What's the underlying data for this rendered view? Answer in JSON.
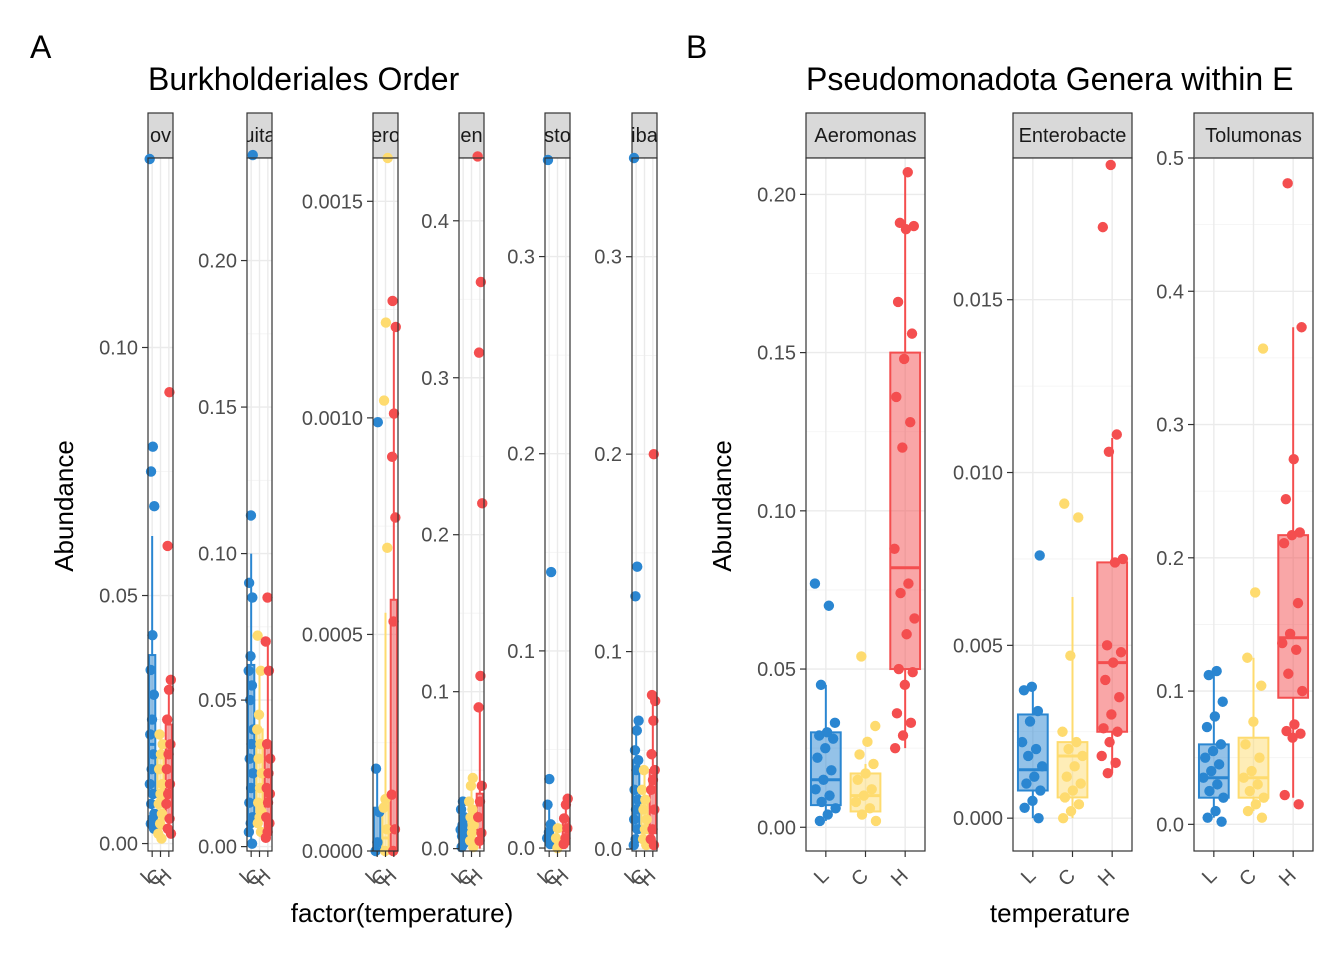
{
  "colors": {
    "L": "#2a86d1",
    "C": "#fedb6f",
    "H": "#f44e4f",
    "grid": "#ebebeb",
    "strip_fill": "#d9d9d9",
    "panel_border": "#333333"
  },
  "chart_data": [
    {
      "letter": "A",
      "title": "Burkholderiales Order",
      "type": "box+jitter",
      "xlabel": "factor(temperature)",
      "ylabel": "Abundance",
      "categories": [
        "L",
        "C",
        "H"
      ],
      "tick_text": "LCH",
      "facets": [
        {
          "strip": "ov",
          "ylim": [
            -0.0015,
            0.1382
          ],
          "yticks": [
            0.0,
            0.05,
            0.1
          ],
          "tick_labels": [
            "0.00",
            "0.05",
            "0.10"
          ],
          "boxes": {
            "L": [
              0.003,
              0.01,
              0.02,
              0.038,
              0.062
            ],
            "C": [
              0.001,
              0.003,
              0.009,
              0.018,
              0.022
            ],
            "H": [
              0.002,
              0.005,
              0.015,
              0.024,
              0.032
            ]
          },
          "points": {
            "L": [
              0.138,
              0.08,
              0.075,
              0.068,
              0.042,
              0.035,
              0.03,
              0.025,
              0.022,
              0.018,
              0.015,
              0.012,
              0.01,
              0.008,
              0.006,
              0.005,
              0.004,
              0.003
            ],
            "C": [
              0.022,
              0.02,
              0.018,
              0.015,
              0.012,
              0.01,
              0.008,
              0.006,
              0.004,
              0.002,
              0.001
            ],
            "H": [
              0.091,
              0.06,
              0.033,
              0.031,
              0.025,
              0.02,
              0.018,
              0.015,
              0.012,
              0.01,
              0.008,
              0.005,
              0.003,
              0.002
            ]
          }
        },
        {
          "strip": "uita",
          "ylim": [
            -0.0015,
            0.235
          ],
          "yticks": [
            0.0,
            0.05,
            0.1,
            0.15,
            0.2
          ],
          "tick_labels": [
            "0.00",
            "0.05",
            "0.10",
            "0.15",
            "0.20"
          ],
          "boxes": {
            "L": [
              0.001,
              0.01,
              0.03,
              0.062,
              0.1
            ],
            "C": [
              0.004,
              0.01,
              0.02,
              0.04,
              0.06
            ],
            "H": [
              0.002,
              0.006,
              0.018,
              0.035,
              0.07
            ]
          },
          "points": {
            "L": [
              0.236,
              0.113,
              0.09,
              0.085,
              0.065,
              0.06,
              0.055,
              0.05,
              0.04,
              0.035,
              0.03,
              0.025,
              0.02,
              0.015,
              0.01,
              0.008,
              0.005,
              0.001
            ],
            "C": [
              0.072,
              0.06,
              0.045,
              0.04,
              0.035,
              0.03,
              0.025,
              0.02,
              0.015,
              0.012,
              0.01,
              0.008,
              0.005
            ],
            "H": [
              0.085,
              0.07,
              0.06,
              0.035,
              0.03,
              0.025,
              0.02,
              0.018,
              0.015,
              0.01,
              0.008,
              0.005,
              0.003
            ]
          }
        },
        {
          "strip": "ero",
          "ylim": [
            0.0,
            0.0016
          ],
          "yticks": [
            0.0,
            0.0005,
            0.001,
            0.0015
          ],
          "tick_labels": [
            "0.0000",
            "0.0005",
            "0.0010",
            "0.0015"
          ],
          "boxes": {
            "L": [
              0.0,
              0.0,
              0.0,
              0.0001,
              0.0002
            ],
            "C": [
              0.0,
              0.0,
              3e-05,
              0.00012,
              0.00055
            ],
            "H": [
              0.0,
              0.0,
              5e-05,
              0.00058,
              0.0012
            ]
          },
          "points": {
            "L": [
              0.00099,
              0.00019,
              9e-05,
              2e-05,
              0.0
            ],
            "C": [
              0.0016,
              0.00122,
              0.00104,
              0.0007,
              0.00012,
              0.0001,
              5e-05,
              0.0
            ],
            "H": [
              0.00127,
              0.00121,
              0.00101,
              0.00091,
              0.00077,
              0.00053,
              0.00013,
              5e-05,
              0.0
            ]
          }
        },
        {
          "strip": "en",
          "ylim": [
            -0.0015,
            0.44
          ],
          "yticks": [
            0.0,
            0.1,
            0.2,
            0.3,
            0.4
          ],
          "tick_labels": [
            "0.0",
            "0.1",
            "0.2",
            "0.3",
            "0.4"
          ],
          "boxes": {
            "L": [
              0.0,
              0.005,
              0.01,
              0.02,
              0.03
            ],
            "C": [
              0.0,
              0.005,
              0.01,
              0.02,
              0.045
            ],
            "H": [
              0.0,
              0.01,
              0.02,
              0.035,
              0.09
            ]
          },
          "points": {
            "L": [
              0.03,
              0.025,
              0.02,
              0.015,
              0.012,
              0.01,
              0.008,
              0.005,
              0.003,
              0.001
            ],
            "C": [
              0.045,
              0.04,
              0.03,
              0.025,
              0.02,
              0.015,
              0.01,
              0.005,
              0.001
            ],
            "H": [
              0.441,
              0.361,
              0.316,
              0.22,
              0.11,
              0.09,
              0.04,
              0.03,
              0.02,
              0.01,
              0.005
            ]
          }
        },
        {
          "strip": "sto",
          "ylim": [
            -0.0015,
            0.35
          ],
          "yticks": [
            0.0,
            0.1,
            0.2,
            0.3
          ],
          "tick_labels": [
            "0.0",
            "0.1",
            "0.2",
            "0.3"
          ],
          "boxes": {
            "L": [
              0.0,
              0.002,
              0.005,
              0.01,
              0.02
            ],
            "C": [
              0.0,
              0.0,
              0.002,
              0.005,
              0.01
            ],
            "H": [
              0.0,
              0.002,
              0.005,
              0.015,
              0.025
            ]
          },
          "points": {
            "L": [
              0.349,
              0.14,
              0.035,
              0.022,
              0.012,
              0.008,
              0.005,
              0.002
            ],
            "C": [
              0.01,
              0.005,
              0.002,
              0.0
            ],
            "H": [
              0.025,
              0.022,
              0.015,
              0.01,
              0.005,
              0.002
            ]
          }
        },
        {
          "strip": "iba",
          "ylim": [
            -0.001,
            0.35
          ],
          "yticks": [
            0.0,
            0.1,
            0.2,
            0.3
          ],
          "tick_labels": [
            "0.0",
            "0.1",
            "0.2",
            "0.3"
          ],
          "boxes": {
            "L": [
              0.0,
              0.01,
              0.025,
              0.045,
              0.065
            ],
            "C": [
              0.002,
              0.008,
              0.015,
              0.025,
              0.04
            ],
            "H": [
              0.002,
              0.008,
              0.02,
              0.04,
              0.078
            ]
          },
          "points": {
            "L": [
              0.35,
              0.143,
              0.128,
              0.065,
              0.06,
              0.05,
              0.045,
              0.04,
              0.03,
              0.025,
              0.02,
              0.015,
              0.01,
              0.005,
              0.002
            ],
            "C": [
              0.04,
              0.03,
              0.025,
              0.02,
              0.015,
              0.01,
              0.005,
              0.002
            ],
            "H": [
              0.2,
              0.078,
              0.075,
              0.065,
              0.048,
              0.04,
              0.035,
              0.03,
              0.02,
              0.01,
              0.005,
              0.002
            ]
          }
        }
      ]
    },
    {
      "letter": "B",
      "title": "Pseudomonadota Genera within E",
      "type": "box+jitter",
      "xlabel": "temperature",
      "ylabel": "Abundance",
      "categories": [
        "L",
        "C",
        "H"
      ],
      "facets": [
        {
          "strip": "Aeromonas",
          "ylim": [
            -0.0075,
            0.2115
          ],
          "yticks": [
            0.0,
            0.05,
            0.1,
            0.15,
            0.2
          ],
          "tick_labels": [
            "0.00",
            "0.05",
            "0.10",
            "0.15",
            "0.20"
          ],
          "boxes": {
            "L": [
              0.002,
              0.007,
              0.015,
              0.03,
              0.045
            ],
            "C": [
              0.003,
              0.005,
              0.01,
              0.017,
              0.02
            ],
            "H": [
              0.025,
              0.05,
              0.082,
              0.15,
              0.207
            ]
          },
          "points": {
            "L": [
              0.077,
              0.07,
              0.045,
              0.033,
              0.03,
              0.029,
              0.028,
              0.025,
              0.022,
              0.018,
              0.015,
              0.012,
              0.01,
              0.008,
              0.006,
              0.004,
              0.002
            ],
            "C": [
              0.054,
              0.032,
              0.027,
              0.023,
              0.02,
              0.017,
              0.015,
              0.012,
              0.01,
              0.008,
              0.006,
              0.004,
              0.002
            ],
            "H": [
              0.207,
              0.191,
              0.19,
              0.189,
              0.166,
              0.156,
              0.148,
              0.136,
              0.128,
              0.12,
              0.088,
              0.077,
              0.074,
              0.066,
              0.061,
              0.05,
              0.049,
              0.045,
              0.036,
              0.033,
              0.029,
              0.025
            ]
          }
        },
        {
          "strip": "Enterobacte",
          "ylim": [
            -0.00095,
            0.0191
          ],
          "yticks": [
            0.0,
            0.005,
            0.01,
            0.015
          ],
          "tick_labels": [
            "0.000",
            "0.005",
            "0.010",
            "0.015"
          ],
          "boxes": {
            "L": [
              0.0,
              0.0008,
              0.0014,
              0.003,
              0.0037
            ],
            "C": [
              0.0,
              0.0006,
              0.0018,
              0.0022,
              0.0064
            ],
            "H": [
              0.0013,
              0.0025,
              0.0045,
              0.0074,
              0.011
            ]
          },
          "points": {
            "L": [
              0.0076,
              0.0038,
              0.0037,
              0.0031,
              0.0028,
              0.0022,
              0.002,
              0.0018,
              0.0015,
              0.0012,
              0.001,
              0.0008,
              0.0005,
              0.0003,
              0.0
            ],
            "C": [
              0.0091,
              0.0087,
              0.0047,
              0.0025,
              0.0022,
              0.002,
              0.0018,
              0.0015,
              0.0012,
              0.001,
              0.0008,
              0.0006,
              0.0004,
              0.0002,
              0.0
            ],
            "H": [
              0.0189,
              0.0171,
              0.0111,
              0.0106,
              0.0075,
              0.0074,
              0.005,
              0.0048,
              0.0045,
              0.004,
              0.0035,
              0.003,
              0.0026,
              0.0025,
              0.0022,
              0.0018,
              0.0016,
              0.0013
            ]
          }
        },
        {
          "strip": "Tolumonas",
          "ylim": [
            -0.02,
            0.5
          ],
          "yticks": [
            0.0,
            0.1,
            0.2,
            0.3,
            0.4,
            0.5
          ],
          "tick_labels": [
            "0.0",
            "0.1",
            "0.2",
            "0.3",
            "0.4",
            "0.5"
          ],
          "boxes": {
            "L": [
              0.005,
              0.02,
              0.035,
              0.06,
              0.115
            ],
            "C": [
              0.01,
              0.02,
              0.035,
              0.065,
              0.125
            ],
            "H": [
              0.02,
              0.095,
              0.14,
              0.217,
              0.373
            ]
          },
          "points": {
            "L": [
              0.115,
              0.112,
              0.092,
              0.081,
              0.073,
              0.06,
              0.055,
              0.05,
              0.045,
              0.04,
              0.035,
              0.03,
              0.025,
              0.02,
              0.01,
              0.005,
              0.002
            ],
            "C": [
              0.357,
              0.174,
              0.125,
              0.104,
              0.077,
              0.06,
              0.05,
              0.04,
              0.035,
              0.03,
              0.025,
              0.02,
              0.015,
              0.01,
              0.005
            ],
            "H": [
              0.481,
              0.373,
              0.274,
              0.244,
              0.219,
              0.217,
              0.211,
              0.166,
              0.143,
              0.136,
              0.131,
              0.113,
              0.1,
              0.075,
              0.07,
              0.068,
              0.065,
              0.022,
              0.015
            ]
          }
        }
      ]
    }
  ]
}
